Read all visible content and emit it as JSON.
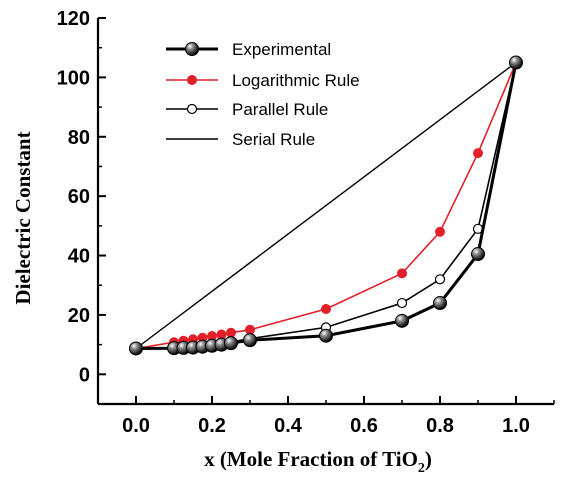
{
  "chart_data": {
    "type": "line",
    "xlabel_main": "x (Mole Fraction of TiO",
    "xlabel_sub": "2",
    "xlabel_close": ")",
    "ylabel": "Dielectric Constant",
    "xlim": [
      -0.1,
      1.1
    ],
    "ylim": [
      -10,
      120
    ],
    "xticks": [
      "0.0",
      "0.2",
      "0.4",
      "0.6",
      "0.8",
      "1.0"
    ],
    "yticks": [
      "0",
      "20",
      "40",
      "60",
      "80",
      "100",
      "120"
    ],
    "legend_position": "top-left",
    "series": [
      {
        "name": "Experimental",
        "marker": "filled-sphere",
        "color": "#000000",
        "x": [
          0.0,
          0.1,
          0.125,
          0.15,
          0.175,
          0.2,
          0.225,
          0.25,
          0.3,
          0.5,
          0.7,
          0.8,
          0.9,
          1.0
        ],
        "y": [
          8.7,
          8.8,
          8.9,
          9.0,
          9.3,
          9.6,
          10.0,
          10.5,
          11.5,
          13.0,
          18.0,
          24.0,
          40.5,
          105.0
        ]
      },
      {
        "name": "Logarithmic Rule",
        "marker": "filled-circle",
        "color": "#e3202a",
        "x": [
          0.0,
          0.1,
          0.125,
          0.15,
          0.175,
          0.2,
          0.225,
          0.25,
          0.3,
          0.5,
          0.7,
          0.8,
          0.9,
          1.0
        ],
        "y": [
          8.7,
          10.8,
          11.3,
          11.8,
          12.3,
          12.9,
          13.4,
          14.0,
          15.0,
          22.0,
          34.0,
          48.0,
          74.5,
          105.0
        ]
      },
      {
        "name": "Parallel Rule",
        "marker": "open-circle",
        "color": "#000000",
        "x": [
          0.0,
          0.1,
          0.125,
          0.15,
          0.175,
          0.2,
          0.225,
          0.25,
          0.3,
          0.5,
          0.7,
          0.8,
          0.9,
          1.0
        ],
        "y": [
          8.7,
          9.0,
          9.2,
          9.4,
          9.7,
          10.0,
          10.4,
          10.9,
          12.0,
          15.8,
          24.0,
          32.0,
          49.0,
          105.0
        ]
      },
      {
        "name": "Serial Rule",
        "marker": "none",
        "color": "#000000",
        "x": [
          0.0,
          1.0
        ],
        "y": [
          8.7,
          105.0
        ]
      }
    ],
    "legend_labels": [
      "Experimental",
      "Logarithmic Rule",
      "Parallel Rule",
      " Serial Rule"
    ]
  }
}
